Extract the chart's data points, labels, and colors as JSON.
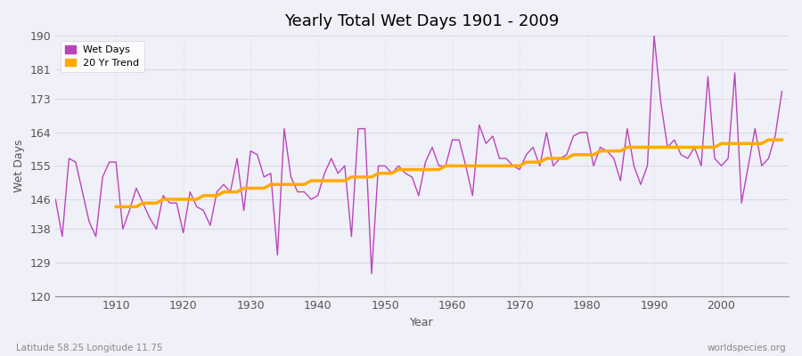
{
  "title": "Yearly Total Wet Days 1901 - 2009",
  "xlabel": "Year",
  "ylabel": "Wet Days",
  "lat_lon_label": "Latitude 58.25 Longitude 11.75",
  "watermark": "worldspecies.org",
  "legend_wet_days": "Wet Days",
  "legend_trend": "20 Yr Trend",
  "line_color_wet": "#bb44bb",
  "line_color_trend": "#ffaa00",
  "background_color": "#f0f0f8",
  "grid_color": "#d8d8e8",
  "ylim": [
    120,
    190
  ],
  "yticks": [
    120,
    129,
    138,
    146,
    155,
    164,
    173,
    181,
    190
  ],
  "xlim": [
    1901,
    2010
  ],
  "xticks": [
    1910,
    1920,
    1930,
    1940,
    1950,
    1960,
    1970,
    1980,
    1990,
    2000
  ],
  "years": [
    1901,
    1902,
    1903,
    1904,
    1905,
    1906,
    1907,
    1908,
    1909,
    1910,
    1911,
    1912,
    1913,
    1914,
    1915,
    1916,
    1917,
    1918,
    1919,
    1920,
    1921,
    1922,
    1923,
    1924,
    1925,
    1926,
    1927,
    1928,
    1929,
    1930,
    1931,
    1932,
    1933,
    1934,
    1935,
    1936,
    1937,
    1938,
    1939,
    1940,
    1941,
    1942,
    1943,
    1944,
    1945,
    1946,
    1947,
    1948,
    1949,
    1950,
    1951,
    1952,
    1953,
    1954,
    1955,
    1956,
    1957,
    1958,
    1959,
    1960,
    1961,
    1962,
    1963,
    1964,
    1965,
    1966,
    1967,
    1968,
    1969,
    1970,
    1971,
    1972,
    1973,
    1974,
    1975,
    1976,
    1977,
    1978,
    1979,
    1980,
    1981,
    1982,
    1983,
    1984,
    1985,
    1986,
    1987,
    1988,
    1989,
    1990,
    1991,
    1992,
    1993,
    1994,
    1995,
    1996,
    1997,
    1998,
    1999,
    2000,
    2001,
    2002,
    2003,
    2004,
    2005,
    2006,
    2007,
    2008,
    2009
  ],
  "wet_days": [
    146,
    136,
    157,
    156,
    148,
    140,
    136,
    152,
    156,
    156,
    138,
    143,
    149,
    145,
    141,
    138,
    147,
    145,
    145,
    137,
    148,
    144,
    143,
    139,
    148,
    150,
    148,
    157,
    143,
    159,
    158,
    152,
    153,
    131,
    165,
    152,
    148,
    148,
    146,
    147,
    153,
    157,
    153,
    155,
    136,
    165,
    165,
    126,
    155,
    155,
    153,
    155,
    153,
    152,
    147,
    156,
    160,
    155,
    155,
    162,
    162,
    155,
    147,
    166,
    161,
    163,
    157,
    157,
    155,
    154,
    158,
    160,
    155,
    164,
    155,
    157,
    158,
    163,
    164,
    164,
    155,
    160,
    159,
    157,
    151,
    165,
    155,
    150,
    155,
    190,
    172,
    160,
    162,
    158,
    157,
    160,
    155,
    179,
    157,
    155,
    157,
    180,
    145,
    155,
    165,
    155,
    157,
    163,
    175
  ],
  "trend": [
    null,
    null,
    null,
    null,
    null,
    null,
    null,
    null,
    null,
    144,
    144,
    144,
    144,
    145,
    145,
    145,
    146,
    146,
    146,
    146,
    146,
    146,
    147,
    147,
    147,
    148,
    148,
    148,
    149,
    149,
    149,
    149,
    150,
    150,
    150,
    150,
    150,
    150,
    151,
    151,
    151,
    151,
    151,
    151,
    152,
    152,
    152,
    152,
    153,
    153,
    153,
    154,
    154,
    154,
    154,
    154,
    154,
    154,
    155,
    155,
    155,
    155,
    155,
    155,
    155,
    155,
    155,
    155,
    155,
    155,
    156,
    156,
    156,
    157,
    157,
    157,
    157,
    158,
    158,
    158,
    158,
    159,
    159,
    159,
    159,
    160,
    160,
    160,
    160,
    160,
    160,
    160,
    160,
    160,
    160,
    160,
    160,
    160,
    160,
    161,
    161,
    161,
    161,
    161,
    161,
    161,
    162,
    162,
    162
  ]
}
